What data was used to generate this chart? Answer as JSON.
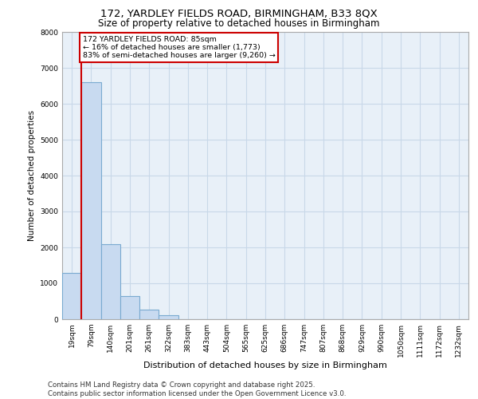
{
  "title_line1": "172, YARDLEY FIELDS ROAD, BIRMINGHAM, B33 8QX",
  "title_line2": "Size of property relative to detached houses in Birmingham",
  "xlabel": "Distribution of detached houses by size in Birmingham",
  "ylabel": "Number of detached properties",
  "footer": "Contains HM Land Registry data © Crown copyright and database right 2025.\nContains public sector information licensed under the Open Government Licence v3.0.",
  "bar_labels": [
    "19sqm",
    "79sqm",
    "140sqm",
    "201sqm",
    "261sqm",
    "322sqm",
    "383sqm",
    "443sqm",
    "504sqm",
    "565sqm",
    "625sqm",
    "686sqm",
    "747sqm",
    "807sqm",
    "868sqm",
    "929sqm",
    "990sqm",
    "1050sqm",
    "1111sqm",
    "1172sqm",
    "1232sqm"
  ],
  "bar_values": [
    1300,
    6600,
    2100,
    650,
    270,
    120,
    0,
    0,
    0,
    0,
    0,
    0,
    0,
    0,
    0,
    0,
    0,
    0,
    0,
    0,
    0
  ],
  "bar_color": "#c8daf0",
  "bar_edge_color": "#7aaad0",
  "grid_color": "#c8d8e8",
  "background_color": "#e8f0f8",
  "annotation_text": "172 YARDLEY FIELDS ROAD: 85sqm\n← 16% of detached houses are smaller (1,773)\n83% of semi-detached houses are larger (9,260) →",
  "annotation_box_color": "#cc0000",
  "vline_x": 0.5,
  "vline_color": "#cc0000",
  "ylim": [
    0,
    8000
  ],
  "yticks": [
    0,
    1000,
    2000,
    3000,
    4000,
    5000,
    6000,
    7000,
    8000
  ],
  "title1_fontsize": 9.5,
  "title2_fontsize": 8.5,
  "ylabel_fontsize": 7.5,
  "xlabel_fontsize": 8,
  "tick_fontsize": 6.5,
  "footer_fontsize": 6.2
}
